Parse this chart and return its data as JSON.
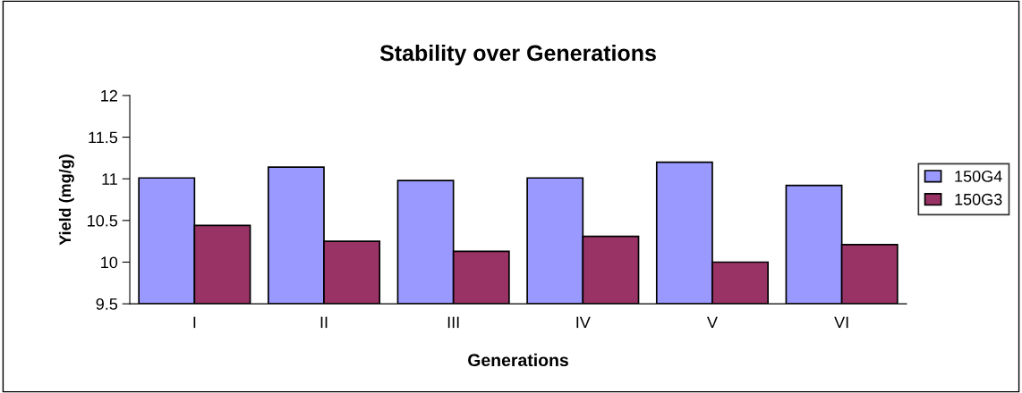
{
  "chart_data": {
    "type": "bar",
    "title": "Stability over Generations",
    "xlabel": "Generations",
    "ylabel": "Yield (mg/g)",
    "categories": [
      "I",
      "II",
      "III",
      "IV",
      "V",
      "VI"
    ],
    "series": [
      {
        "name": "150G4",
        "color": "#9999ff",
        "values": [
          11.01,
          11.14,
          10.98,
          11.01,
          11.2,
          10.92
        ]
      },
      {
        "name": "150G3",
        "color": "#993366",
        "values": [
          10.44,
          10.25,
          10.13,
          10.31,
          10.0,
          10.21
        ]
      }
    ],
    "ylim": [
      9.5,
      12
    ],
    "yticks": [
      9.5,
      10,
      10.5,
      11,
      11.5,
      12
    ],
    "grid": false,
    "legend": "right"
  }
}
